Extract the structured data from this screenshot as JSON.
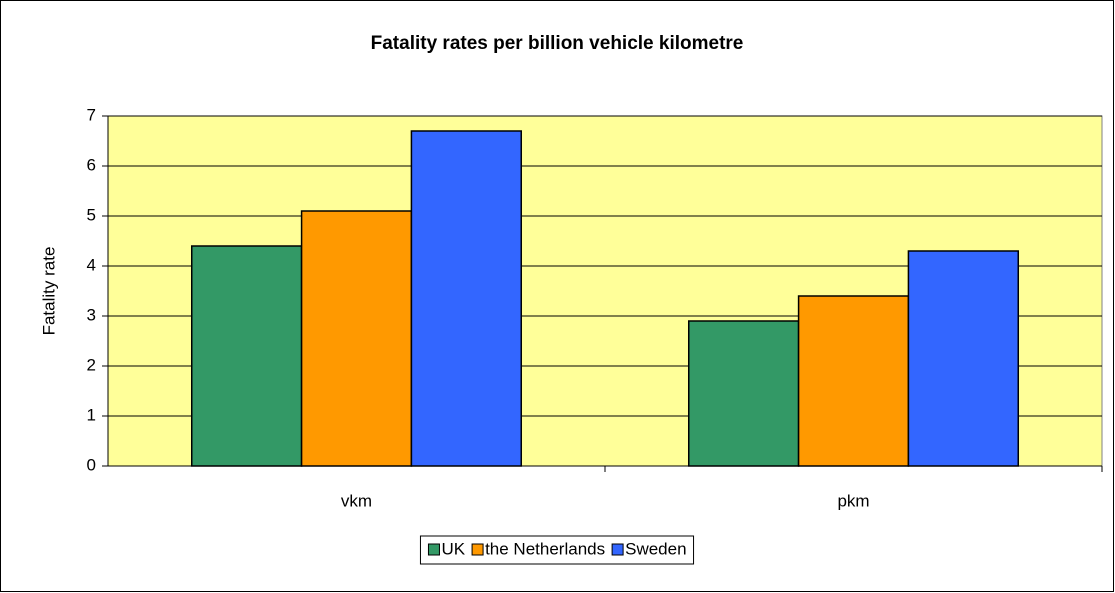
{
  "chart_data": {
    "type": "bar",
    "title": "Fatality rates per billion vehicle kilometre",
    "y_label": "Fatality rate",
    "categories": [
      "vkm",
      "pkm"
    ],
    "series": [
      {
        "name": "UK",
        "color": "#339966",
        "values": [
          4.4,
          2.9
        ]
      },
      {
        "name": "the Netherlands",
        "color": "#ff9900",
        "values": [
          5.1,
          3.4
        ]
      },
      {
        "name": "Sweden",
        "color": "#3366ff",
        "values": [
          6.7,
          4.3
        ]
      }
    ],
    "ylim": [
      0,
      7
    ],
    "yticks": [
      0,
      1,
      2,
      3,
      4,
      5,
      6,
      7
    ],
    "grid": true,
    "plot_background": "#ffff99",
    "legend": "bottom"
  }
}
